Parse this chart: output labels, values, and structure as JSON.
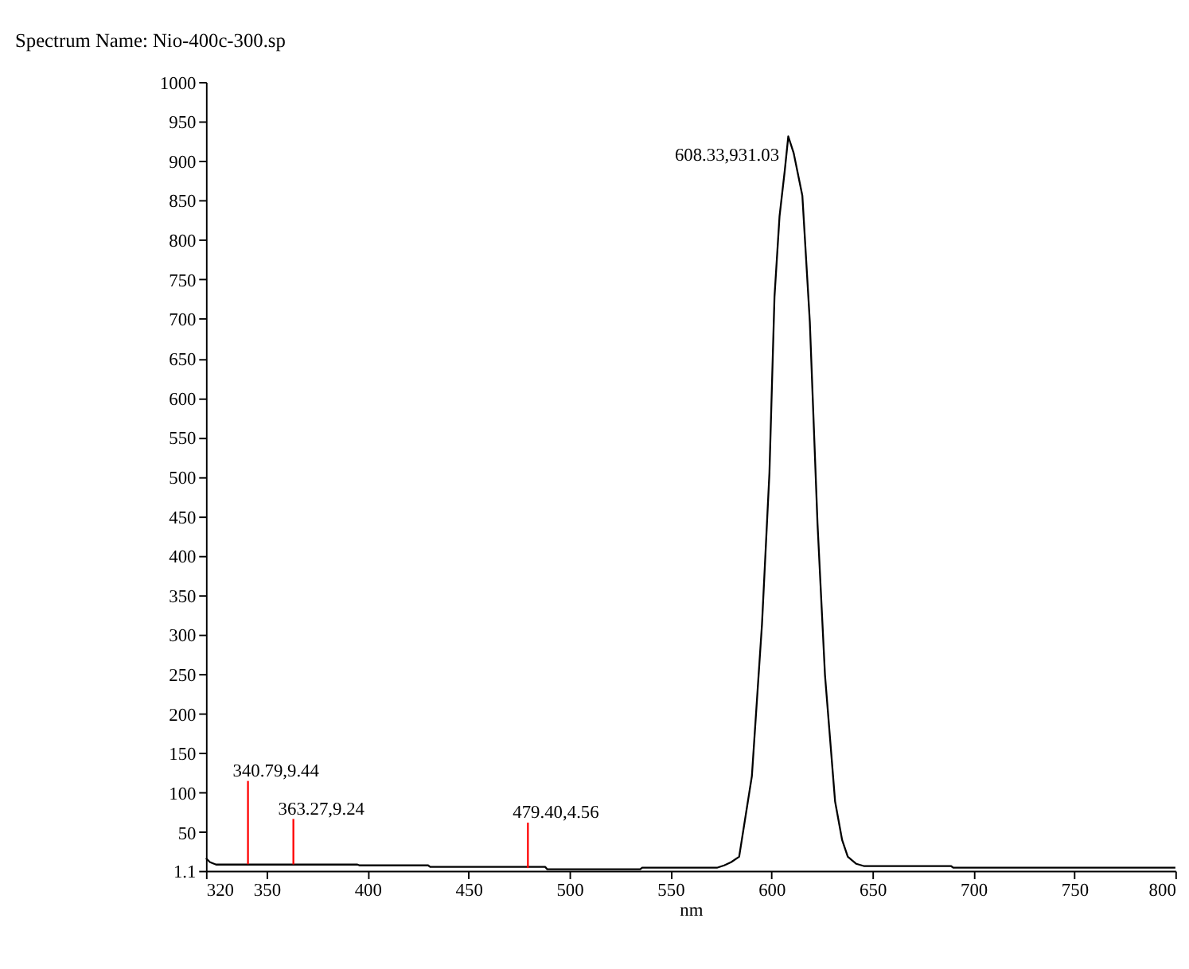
{
  "chart_data": {
    "type": "line",
    "title": "Spectrum Name: Nio-400c-300.sp",
    "xlabel": "nm",
    "x": [
      320,
      322,
      325,
      330,
      340,
      360,
      380,
      395,
      396,
      430,
      431,
      488,
      489,
      535,
      536,
      573,
      576.6,
      580,
      584,
      590.3,
      595.3,
      599,
      601.5,
      604,
      606.6,
      608.33,
      611,
      615.3,
      619,
      622.8,
      626.5,
      631.5,
      635,
      637.8,
      642,
      646,
      689,
      690,
      800
    ],
    "series": [
      {
        "color": "#000000",
        "values": [
          17,
          12,
          9,
          9,
          9,
          9,
          9,
          9,
          8,
          8,
          6,
          6,
          3,
          3,
          5,
          5,
          8,
          12,
          19,
          121,
          313,
          505,
          728,
          830,
          888,
          931.03,
          910,
          856,
          696,
          441,
          249,
          89,
          40,
          19,
          10,
          7,
          7,
          5,
          5
        ]
      }
    ],
    "xlim": [
      320,
      800
    ],
    "xticks": [
      320,
      350,
      400,
      450,
      500,
      550,
      600,
      650,
      700,
      750,
      800
    ],
    "ylim": [
      1.1,
      1000
    ],
    "yticks": [
      1.1,
      50,
      100,
      150,
      200,
      250,
      300,
      350,
      400,
      450,
      500,
      550,
      600,
      650,
      700,
      750,
      800,
      850,
      900,
      950,
      1000
    ],
    "grid": false,
    "marker": "none",
    "line_style": "solid",
    "annotations": [
      {
        "text": "340.79,9.44",
        "x": 340.79,
        "y": 9.44
      },
      {
        "text": "363.27,9.24",
        "x": 363.27,
        "y": 9.24
      },
      {
        "text": "479.40,4.56",
        "x": 479.4,
        "y": 4.56
      },
      {
        "text": "608.33,931.03",
        "x": 608.33,
        "y": 931.03
      }
    ]
  }
}
